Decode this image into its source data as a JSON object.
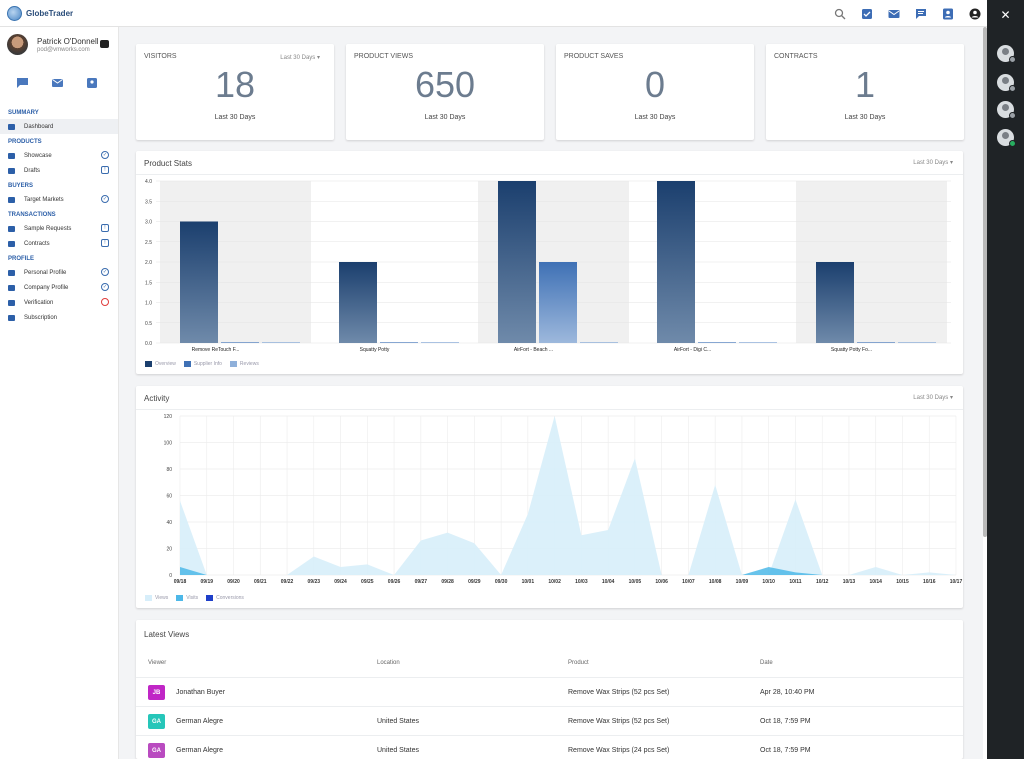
{
  "app": {
    "name": "GlobeTrader"
  },
  "topbar": {
    "icons": [
      "search-icon",
      "checklist-icon",
      "mail-icon",
      "chat-icon",
      "contact-icon",
      "account-icon"
    ]
  },
  "user": {
    "name": "Patrick O'Donnell",
    "email": "pod@vmworks.com"
  },
  "sidebar": {
    "sections": [
      {
        "title": "SUMMARY",
        "items": [
          {
            "label": "Dashboard",
            "icon": "dashboard-icon",
            "status": ""
          }
        ]
      },
      {
        "title": "PRODUCTS",
        "items": [
          {
            "label": "Showcase",
            "icon": "showcase-icon",
            "status": "check"
          },
          {
            "label": "Drafts",
            "icon": "pencil-icon",
            "status": "square"
          }
        ]
      },
      {
        "title": "BUYERS",
        "items": [
          {
            "label": "Target Markets",
            "icon": "target-icon",
            "status": "check"
          }
        ]
      },
      {
        "title": "TRANSACTIONS",
        "items": [
          {
            "label": "Sample Requests",
            "icon": "flask-icon",
            "status": "square"
          },
          {
            "label": "Contracts",
            "icon": "handshake-icon",
            "status": "square"
          }
        ]
      },
      {
        "title": "PROFILE",
        "items": [
          {
            "label": "Personal Profile",
            "icon": "person-icon",
            "status": "check"
          },
          {
            "label": "Company Profile",
            "icon": "company-icon",
            "status": "check"
          },
          {
            "label": "Verification",
            "icon": "shield-icon",
            "status": "error"
          },
          {
            "label": "Subscription",
            "icon": "list-icon",
            "status": ""
          }
        ]
      }
    ]
  },
  "kpis": [
    {
      "title": "VISITORS",
      "value": "18",
      "sub": "Last 30 Days",
      "range": "Last 30 Days"
    },
    {
      "title": "PRODUCT VIEWS",
      "value": "650",
      "sub": "Last 30 Days",
      "range": ""
    },
    {
      "title": "PRODUCT SAVES",
      "value": "0",
      "sub": "Last 30 Days",
      "range": ""
    },
    {
      "title": "CONTRACTS",
      "value": "1",
      "sub": "Last 30 Days",
      "range": ""
    }
  ],
  "product_stats": {
    "title": "Product Stats",
    "range": "Last 30 Days"
  },
  "activity": {
    "title": "Activity",
    "range": "Last 30 Days"
  },
  "chart_data": [
    {
      "type": "bar",
      "title": "Product Stats",
      "categories": [
        "Remove ReTouch F...",
        "Squatty Potty",
        "AirFort - Beach ...",
        "AirFort - Digi C...",
        "Squatty Potty Fo..."
      ],
      "series": [
        {
          "name": "Overview",
          "values": [
            3.0,
            2.0,
            4.0,
            4.0,
            2.0
          ]
        },
        {
          "name": "Supplier Info",
          "values": [
            0,
            0,
            2.0,
            0,
            0
          ]
        },
        {
          "name": "Reviews",
          "values": [
            0,
            0,
            0,
            0,
            0
          ]
        }
      ],
      "yticks": [
        "0.0",
        "0.5",
        "1.0",
        "1.5",
        "2.0",
        "2.5",
        "3.0",
        "3.5",
        "4.0"
      ],
      "ylim": [
        0,
        4
      ],
      "colors": [
        "#1b3f6e",
        "#3f71b5",
        "#8fb0da"
      ]
    },
    {
      "type": "area",
      "title": "Activity",
      "x": [
        "09/18",
        "09/19",
        "09/20",
        "09/21",
        "09/22",
        "09/23",
        "09/24",
        "09/25",
        "09/26",
        "09/27",
        "09/28",
        "09/29",
        "09/30",
        "10/01",
        "10/02",
        "10/03",
        "10/04",
        "10/05",
        "10/06",
        "10/07",
        "10/08",
        "10/09",
        "10/10",
        "10/11",
        "10/12",
        "10/13",
        "10/14",
        "10/15",
        "10/16",
        "10/17"
      ],
      "series": [
        {
          "name": "Views",
          "values": [
            56,
            0,
            0,
            0,
            0,
            14,
            6,
            8,
            0,
            26,
            32,
            24,
            0,
            46,
            120,
            30,
            34,
            88,
            0,
            0,
            68,
            0,
            0,
            57,
            0,
            0,
            6,
            0,
            2,
            0
          ]
        },
        {
          "name": "Visits",
          "values": [
            6,
            0,
            0,
            0,
            0,
            0,
            0,
            0,
            0,
            0,
            0,
            0,
            0,
            0,
            0,
            0,
            0,
            0,
            0,
            0,
            0,
            0,
            6,
            2,
            0,
            0,
            0,
            0,
            0,
            0
          ]
        },
        {
          "name": "Conversions",
          "values": [
            0,
            0,
            0,
            0,
            0,
            0,
            0,
            0,
            0,
            0,
            0,
            0,
            0,
            0,
            0,
            0,
            0,
            0,
            0,
            0,
            0,
            0,
            0,
            0,
            0,
            0,
            0,
            0,
            0,
            0
          ]
        }
      ],
      "yticks": [
        "0",
        "20",
        "40",
        "60",
        "80",
        "100",
        "120"
      ],
      "ylim": [
        0,
        120
      ],
      "colors": [
        "#d7eefa",
        "#4db8e8",
        "#1e3fc9"
      ]
    }
  ],
  "latest_views": {
    "title": "Latest Views",
    "columns": [
      "Viewer",
      "Location",
      "Product",
      "Date"
    ],
    "rows": [
      {
        "initials": "JB",
        "color": "#c026c6",
        "viewer": "Jonathan Buyer",
        "location": "",
        "product": "Remove Wax Strips (52 pcs Set)",
        "date": "Apr 28, 10:40 PM"
      },
      {
        "initials": "GA",
        "color": "#26c6b9",
        "viewer": "German Alegre",
        "location": "United States",
        "product": "Remove Wax Strips (52 pcs Set)",
        "date": "Oct 18, 7:59 PM"
      },
      {
        "initials": "GA",
        "color": "#b94bc0",
        "viewer": "German Alegre",
        "location": "United States",
        "product": "Remove Wax Strips (24 pcs Set)",
        "date": "Oct 18, 7:59 PM"
      }
    ]
  }
}
